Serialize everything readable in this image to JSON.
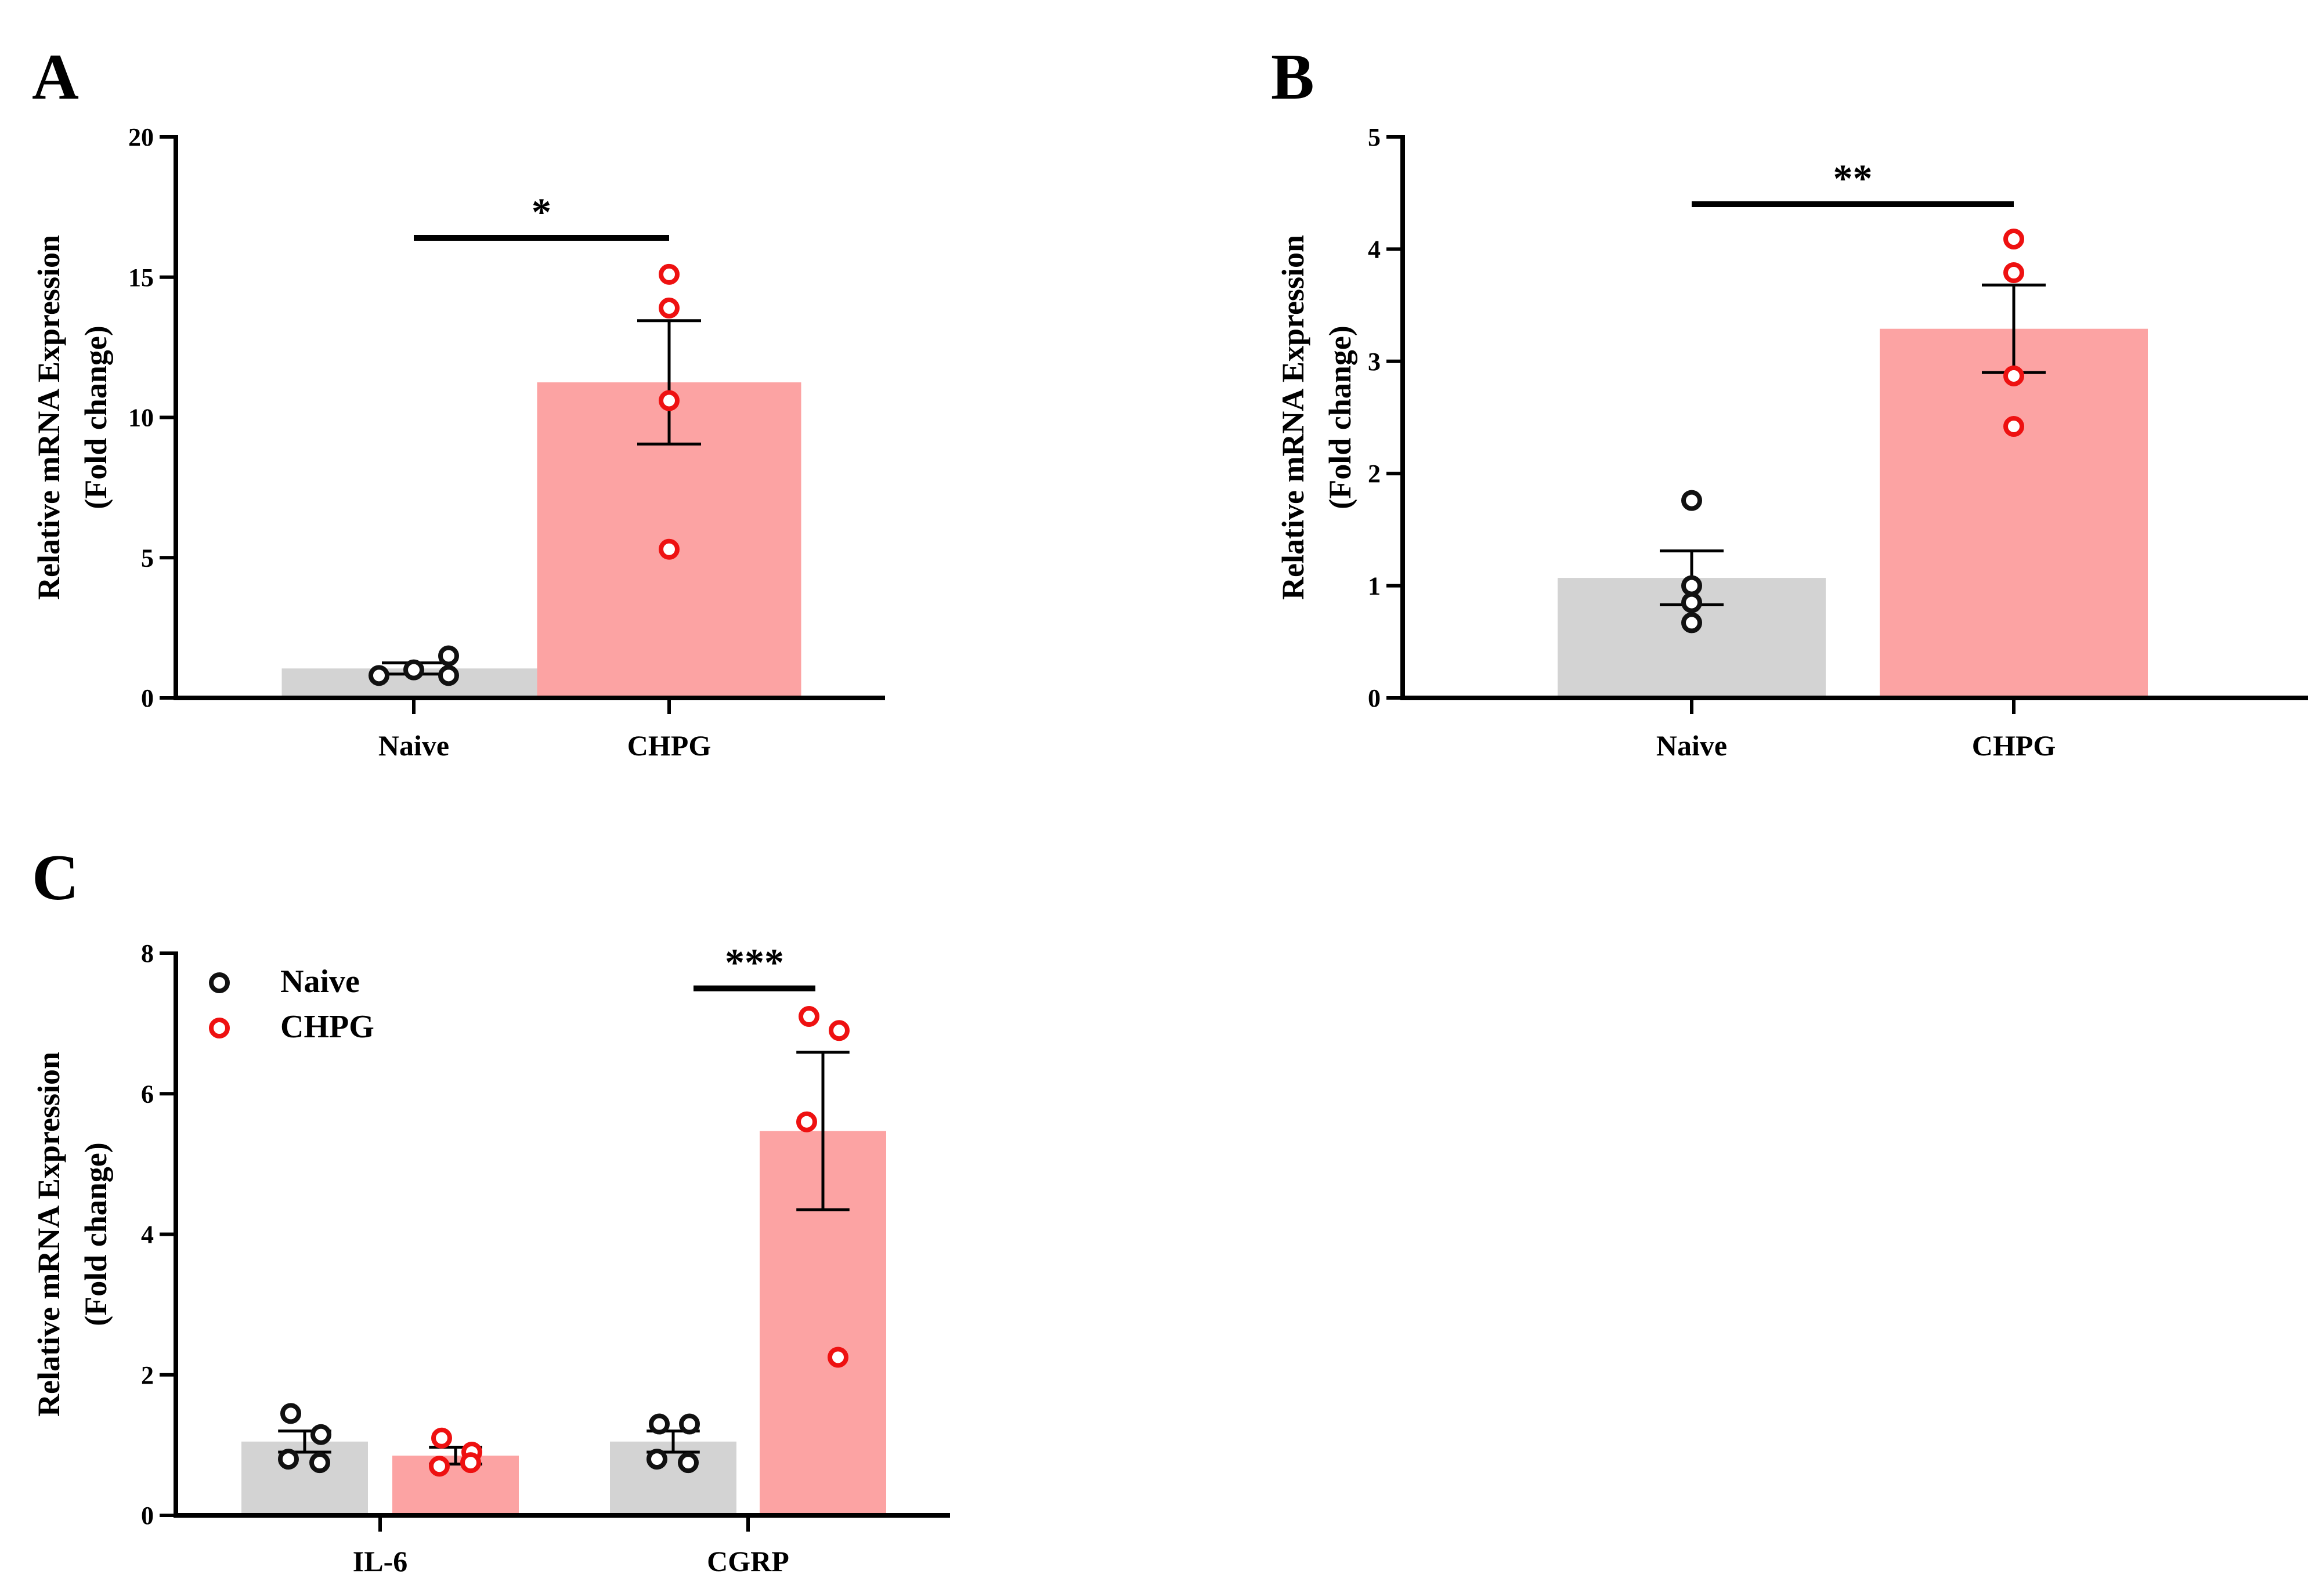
{
  "colors": {
    "naive_bar": "#d3d3d3",
    "chpg_bar": "#fca3a3",
    "naive_point": "#111111",
    "chpg_point": "#ee1111",
    "axis": "#000000"
  },
  "chart_data": [
    {
      "type": "bar",
      "panel": "A",
      "categories": [
        "Naive",
        "CHPG"
      ],
      "ylabel_line1": "Relative mRNA Expression",
      "ylabel_line2": "(Fold change)",
      "ylim": [
        0,
        20
      ],
      "yticks": [
        0,
        5,
        10,
        15,
        20
      ],
      "ytick_labels": [
        "0",
        "5",
        "10",
        "15",
        "20"
      ],
      "series": [
        {
          "values": [
            1.05,
            11.25
          ],
          "error": [
            0.2,
            2.2
          ],
          "points": [
            [
              0.8,
              1.0,
              1.5,
              0.8
            ],
            [
              15.1,
              13.9,
              10.6,
              5.3
            ]
          ]
        }
      ],
      "significance": [
        {
          "from": 0,
          "to": 1,
          "label": "*",
          "y": 16.4
        }
      ]
    },
    {
      "type": "bar",
      "panel": "B",
      "categories": [
        "Naive",
        "CHPG"
      ],
      "ylabel_line1": "Relative mRNA Expression",
      "ylabel_line2": "(Fold change)",
      "ylim": [
        0,
        5
      ],
      "yticks": [
        0,
        1,
        2,
        3,
        4,
        5
      ],
      "ytick_labels": [
        "0",
        "1",
        "2",
        "3",
        "4",
        "5"
      ],
      "series": [
        {
          "values": [
            1.07,
            3.29
          ],
          "error": [
            0.24,
            0.39
          ],
          "points": [
            [
              1.76,
              1.0,
              0.85,
              0.67
            ],
            [
              4.09,
              3.79,
              2.87,
              2.42
            ]
          ]
        }
      ],
      "significance": [
        {
          "from": 0,
          "to": 1,
          "label": "**",
          "y": 4.4
        }
      ]
    },
    {
      "type": "bar",
      "panel": "C",
      "categories": [
        "IL-6",
        "CGRP"
      ],
      "ylabel_line1": "Relative mRNA Expression",
      "ylabel_line2": "(Fold change)",
      "ylim": [
        0,
        8
      ],
      "yticks": [
        0,
        2,
        4,
        6,
        8
      ],
      "ytick_labels": [
        "0",
        "2",
        "4",
        "6",
        "8"
      ],
      "legend": "top-left",
      "series": [
        {
          "name": "Naive",
          "values": [
            1.05,
            1.05
          ],
          "error": [
            0.15,
            0.15
          ],
          "points": [
            [
              1.45,
              1.15,
              0.8,
              0.75
            ],
            [
              1.3,
              1.3,
              0.8,
              0.75
            ]
          ]
        },
        {
          "name": "CHPG",
          "values": [
            0.85,
            5.47
          ],
          "error": [
            0.12,
            1.12
          ],
          "points": [
            [
              1.1,
              0.9,
              0.7,
              0.75
            ],
            [
              7.1,
              6.9,
              5.6,
              2.25
            ]
          ]
        }
      ],
      "significance": [
        {
          "from": 2,
          "to": 3,
          "label": "***",
          "y": 7.5
        }
      ]
    }
  ]
}
